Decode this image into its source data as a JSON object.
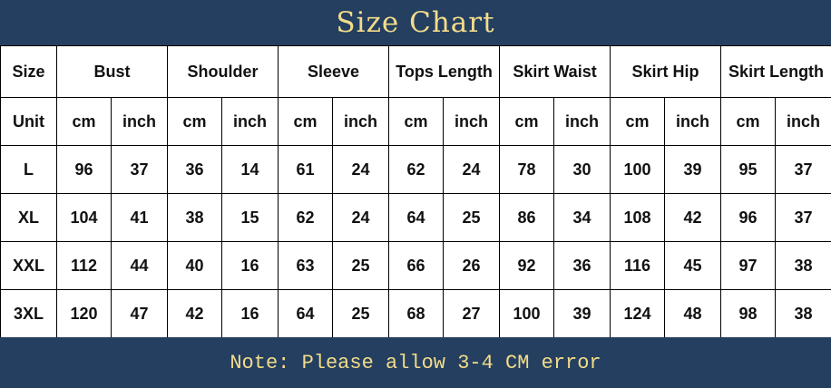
{
  "title": "Size Chart",
  "headers": [
    "Size",
    "Bust",
    "Shoulder",
    "Sleeve",
    "Tops Length",
    "Skirt Waist",
    "Skirt Hip",
    "Skirt Length"
  ],
  "unit_label": "Unit",
  "units": [
    "cm",
    "inch"
  ],
  "rows": [
    {
      "size": "L",
      "values": [
        "96",
        "37",
        "36",
        "14",
        "61",
        "24",
        "62",
        "24",
        "78",
        "30",
        "100",
        "39",
        "95",
        "37"
      ]
    },
    {
      "size": "XL",
      "values": [
        "104",
        "41",
        "38",
        "15",
        "62",
        "24",
        "64",
        "25",
        "86",
        "34",
        "108",
        "42",
        "96",
        "37"
      ]
    },
    {
      "size": "XXL",
      "values": [
        "112",
        "44",
        "40",
        "16",
        "63",
        "25",
        "66",
        "26",
        "92",
        "36",
        "116",
        "45",
        "97",
        "38"
      ]
    },
    {
      "size": "3XL",
      "values": [
        "120",
        "47",
        "42",
        "16",
        "64",
        "25",
        "68",
        "27",
        "100",
        "39",
        "124",
        "48",
        "98",
        "38"
      ]
    }
  ],
  "note": "Note: Please allow 3-4 CM error",
  "colors": {
    "band": "#243f60",
    "band_text": "#f3dc8a"
  }
}
